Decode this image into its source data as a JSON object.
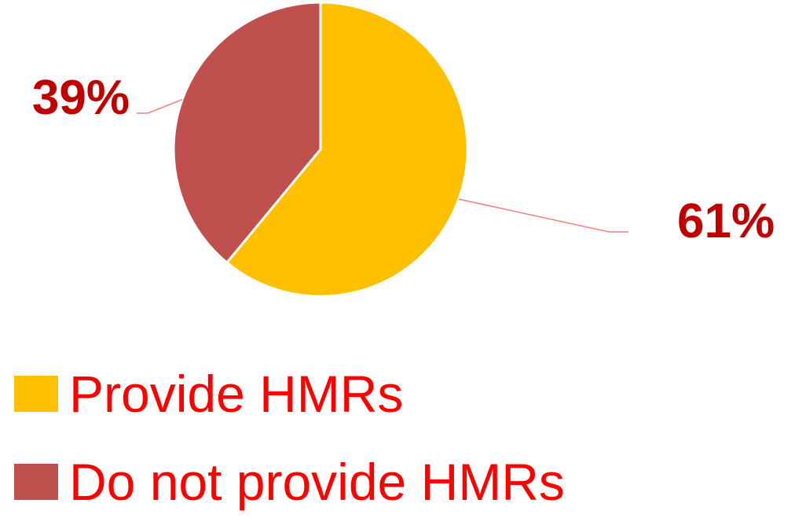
{
  "chart_data": {
    "type": "pie",
    "categories": [
      "Provide HMRs",
      "Do not provide HMRs"
    ],
    "values": [
      61,
      39
    ],
    "value_labels": [
      "61%",
      "39%"
    ],
    "colors": [
      "#ffc000",
      "#c0504d"
    ]
  }
}
